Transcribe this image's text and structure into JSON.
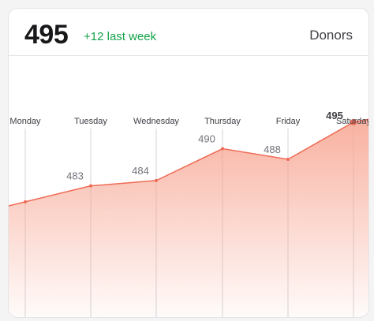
{
  "header": {
    "total": "495",
    "change": "+12 last week",
    "label": "Donors"
  },
  "colors": {
    "accent": "#ef6b55",
    "fill_top": "#f7a38f",
    "positive": "#16a34a"
  },
  "chart_data": {
    "type": "area",
    "categories": [
      "Monday",
      "Tuesday",
      "Wednesday",
      "Thursday",
      "Friday",
      "Saturday"
    ],
    "values": [
      480,
      483,
      484,
      490,
      488,
      495
    ],
    "value_labels": [
      "",
      "483",
      "484",
      "490",
      "488",
      "495"
    ],
    "title": "",
    "xlabel": "",
    "ylabel": "",
    "ylim": [
      458,
      503
    ],
    "grid": "vertical",
    "highlight_last": true
  }
}
